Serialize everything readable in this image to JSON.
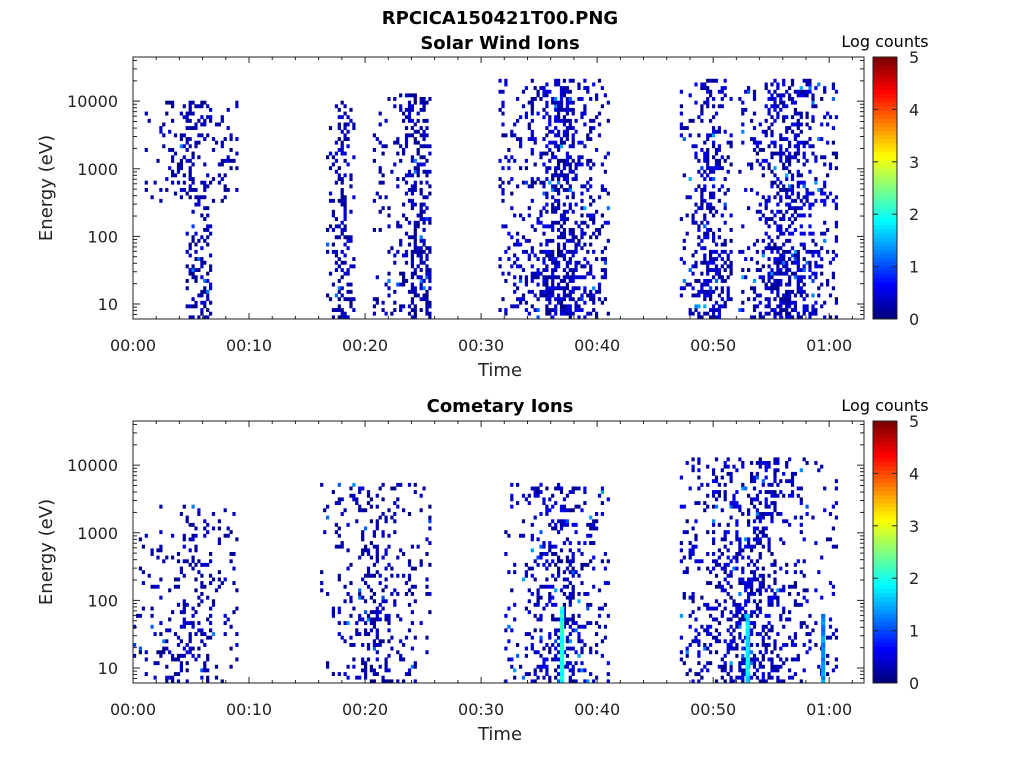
{
  "figure": {
    "title": "RPCICA150421T00.PNG"
  },
  "colorbar": {
    "label": "Log counts",
    "ticks": [
      "0",
      "1",
      "2",
      "3",
      "4",
      "5"
    ]
  },
  "colors": {
    "background": "#ffffff",
    "axis": "#222222",
    "colormap": "jet"
  },
  "panels": [
    {
      "title": "Solar Wind Ions",
      "xlabel": "Time",
      "ylabel": "Energy (eV)",
      "xticks": [
        "00:00",
        "00:10",
        "00:20",
        "00:30",
        "00:40",
        "00:50",
        "01:00"
      ],
      "yticks": [
        "10",
        "100",
        "1000",
        "10000"
      ]
    },
    {
      "title": "Cometary Ions",
      "xlabel": "Time",
      "ylabel": "Energy (eV)",
      "xticks": [
        "00:00",
        "00:10",
        "00:20",
        "00:30",
        "00:40",
        "00:50",
        "01:00"
      ],
      "yticks": [
        "10",
        "100",
        "1000",
        "10000"
      ]
    }
  ],
  "chart_data": [
    {
      "type": "heatmap",
      "title": "Solar Wind Ions",
      "xlabel": "Time",
      "ylabel": "Energy (eV)",
      "x_unit": "minutes after 00:00",
      "xlim": [
        0,
        63
      ],
      "ylim": [
        6,
        45000
      ],
      "yscale": "log",
      "zlabel": "Log counts",
      "zlim": [
        0,
        5
      ],
      "bursts": [
        {
          "start": 0.5,
          "end": 9.0,
          "peak": 5.5,
          "emin": 300,
          "emax": 10000,
          "low_emin": 6,
          "low_at": 5.5,
          "density": 0.22,
          "intensity": 0.15
        },
        {
          "start": 16.5,
          "end": 19.0,
          "peak": 18.0,
          "emin": 6,
          "emax": 10000,
          "density": 0.3,
          "intensity": 0.15
        },
        {
          "start": 20.5,
          "end": 25.5,
          "peak": 24.5,
          "emin": 6,
          "emax": 12000,
          "density": 0.3,
          "intensity": 0.15
        },
        {
          "start": 31.5,
          "end": 41.0,
          "peak": 37.0,
          "emin": 6,
          "emax": 20000,
          "density": 0.32,
          "intensity": 0.2
        },
        {
          "start": 47.0,
          "end": 51.5,
          "peak": 49.7,
          "emin": 6,
          "emax": 20000,
          "density": 0.32,
          "intensity": 0.2
        },
        {
          "start": 52.0,
          "end": 60.5,
          "peak": 56.5,
          "emin": 6,
          "emax": 20000,
          "density": 0.32,
          "intensity": 0.2
        }
      ]
    },
    {
      "type": "heatmap",
      "title": "Cometary Ions",
      "xlabel": "Time",
      "ylabel": "Energy (eV)",
      "x_unit": "minutes after 00:00",
      "xlim": [
        0,
        63
      ],
      "ylim": [
        6,
        45000
      ],
      "yscale": "log",
      "zlabel": "Log counts",
      "zlim": [
        0,
        5
      ],
      "bursts": [
        {
          "start": 0.0,
          "end": 9.0,
          "peak": 5.0,
          "emin": 6,
          "emax": 2500,
          "density": 0.16,
          "intensity": 0.15
        },
        {
          "start": 16.0,
          "end": 25.5,
          "peak": 21.0,
          "emin": 6,
          "emax": 5000,
          "density": 0.18,
          "intensity": 0.15
        },
        {
          "start": 32.0,
          "end": 41.0,
          "peak": 36.8,
          "emin": 6,
          "emax": 5000,
          "density": 0.24,
          "intensity": 0.2
        },
        {
          "start": 47.0,
          "end": 60.5,
          "peak": 52.8,
          "emin": 6,
          "emax": 12000,
          "density": 0.26,
          "intensity": 0.2
        }
      ],
      "spikes": [
        {
          "t": 36.8,
          "emax": 80,
          "level": 2.0
        },
        {
          "t": 52.8,
          "emax": 60,
          "level": 1.8
        },
        {
          "t": 59.3,
          "emax": 60,
          "level": 1.3
        }
      ]
    }
  ]
}
